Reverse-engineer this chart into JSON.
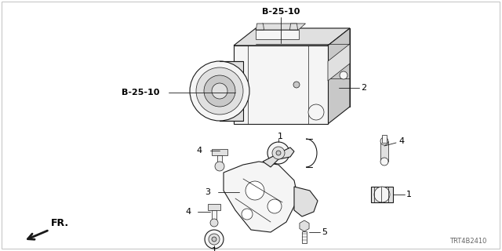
{
  "bg_color": "#ffffff",
  "part_code": "TRT4B2410",
  "fr_label": "FR.",
  "line_color": "#1a1a1a",
  "text_color": "#000000",
  "gray_color": "#666666",
  "fill_light": "#f5f5f5",
  "fill_mid": "#e0e0e0",
  "fill_dark": "#c8c8c8",
  "lw_main": 0.8,
  "lw_thin": 0.5,
  "lw_thick": 1.0
}
